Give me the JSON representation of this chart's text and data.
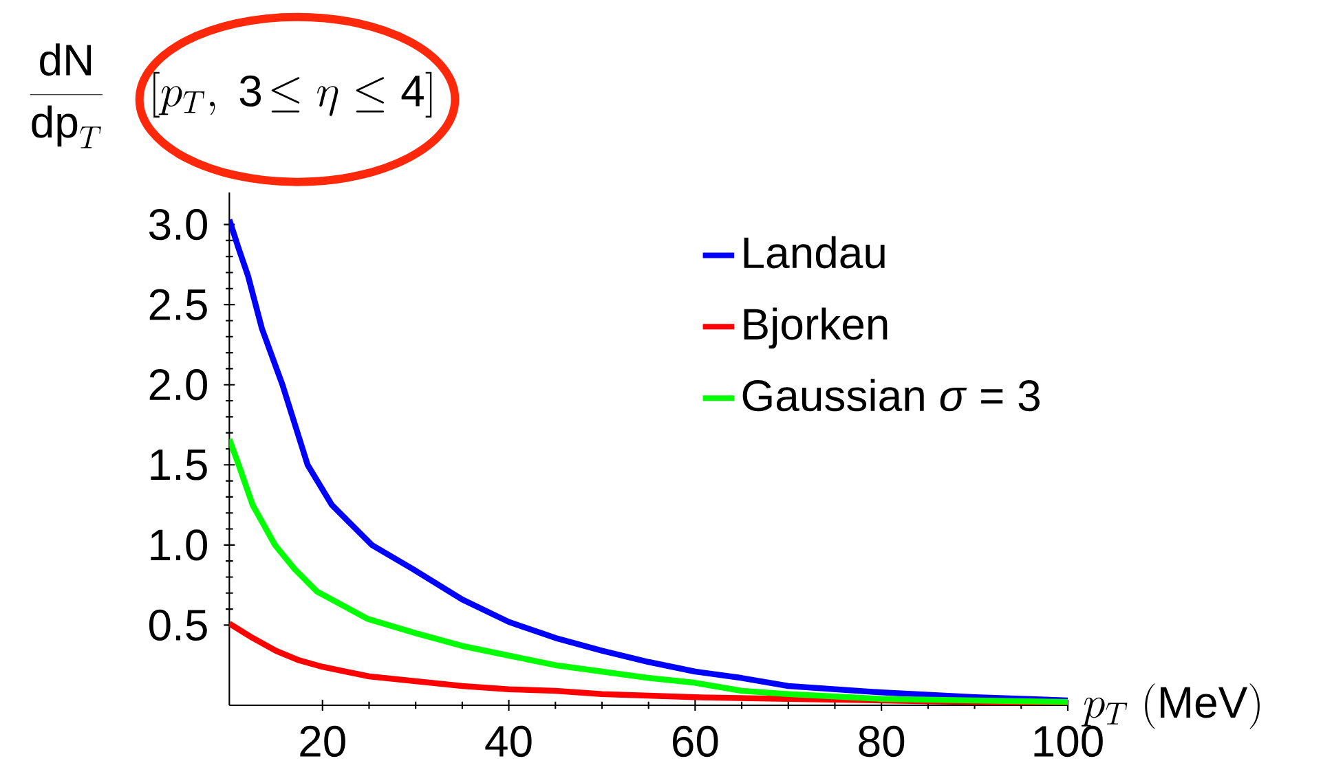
{
  "chart_data": {
    "type": "line",
    "xlabel": "p_T\\ (\\mathrm{MeV})",
    "ylabel": "\\frac{\\mathrm{dN}}{\\mathrm{dp}_T}\\quad[p_T,\\ \\mathrm{3}\\!\\leq \\eta \\leq \\mathrm{4}]",
    "xlim": [
      10,
      100
    ],
    "ylim": [
      0,
      3.2
    ],
    "xticks": [
      20,
      40,
      60,
      80,
      100
    ],
    "yticks": [
      {
        "value": 0.5,
        "label": "0.5"
      },
      {
        "value": 1,
        "label": "1.0"
      },
      {
        "value": 1.5,
        "label": "1.5"
      },
      {
        "value": 2,
        "label": "2.0"
      },
      {
        "value": 2.5,
        "label": "2.5"
      },
      {
        "value": 3,
        "label": "3.0"
      }
    ],
    "legend": "top right",
    "grid": false,
    "marker": "none",
    "line_style": "solid",
    "series": [
      {
        "name": "Landau",
        "color": "#0000ff",
        "x": [
          10,
          11,
          12,
          13.5,
          15.7,
          18.4,
          21,
          25.3,
          29.7,
          35,
          40,
          45,
          50,
          55,
          60,
          65,
          70,
          80,
          90,
          100
        ],
        "values": [
          3.03,
          2.85,
          2.68,
          2.35,
          2.0,
          1.5,
          1.25,
          1.0,
          0.85,
          0.66,
          0.52,
          0.42,
          0.34,
          0.27,
          0.21,
          0.17,
          0.12,
          0.08,
          0.05,
          0.03
        ]
      },
      {
        "name": "Bjorken",
        "color": "#ff0000",
        "x": [
          10,
          12.5,
          15,
          17.5,
          20,
          25,
          30,
          35,
          40,
          45,
          50,
          60,
          70,
          80,
          90,
          100
        ],
        "values": [
          0.51,
          0.42,
          0.34,
          0.28,
          0.24,
          0.18,
          0.15,
          0.12,
          0.1,
          0.09,
          0.07,
          0.05,
          0.04,
          0.03,
          0.02,
          0.01
        ]
      },
      {
        "name": "Gaussian *σ* = 3",
        "color": "#00ff00",
        "x": [
          10,
          11,
          12.5,
          14.9,
          17,
          19.4,
          24.8,
          30,
          35,
          40,
          45,
          50,
          55,
          60,
          65,
          70,
          80,
          90,
          100
        ],
        "values": [
          1.66,
          1.5,
          1.25,
          1.0,
          0.85,
          0.71,
          0.54,
          0.45,
          0.37,
          0.31,
          0.25,
          0.21,
          0.17,
          0.14,
          0.09,
          0.07,
          0.04,
          0.03,
          0.02
        ]
      }
    ]
  }
}
